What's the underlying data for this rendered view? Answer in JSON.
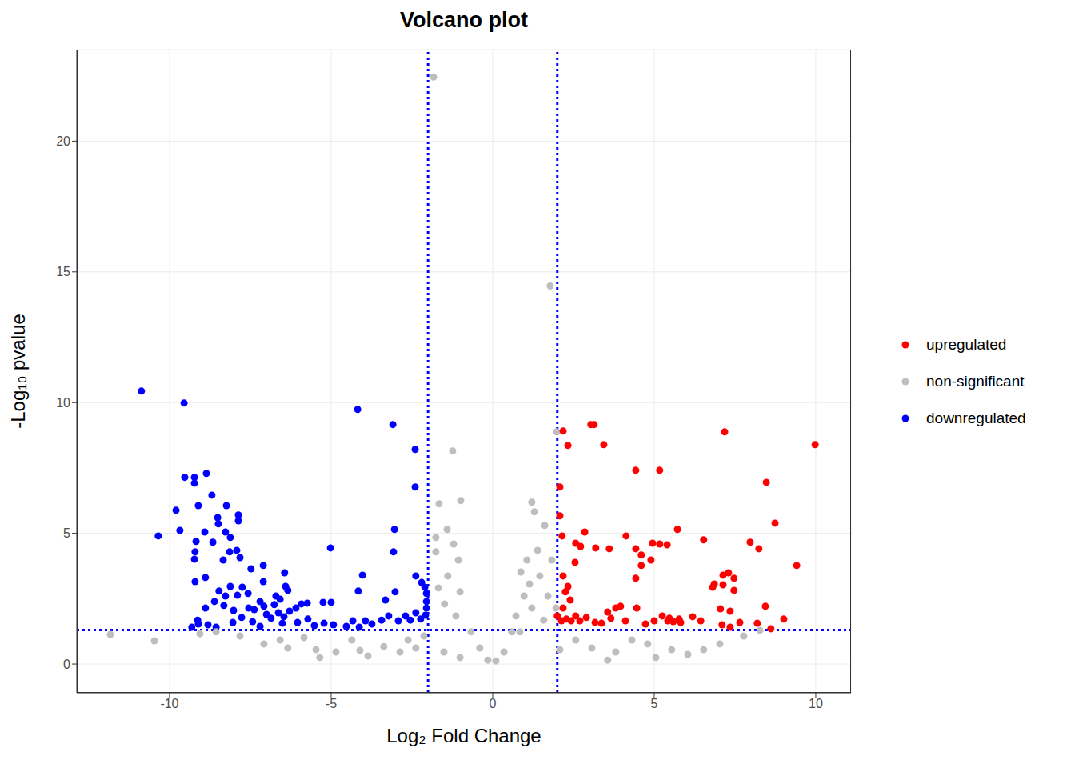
{
  "chart_data": {
    "type": "scatter",
    "title": "Volcano plot",
    "x_label": "Log₂ Fold Change",
    "y_label": "-Log₁₀ pvalue",
    "xlim": [
      -12.87,
      11.09
    ],
    "ylim": [
      -1.1,
      23.5
    ],
    "xticks": [
      -10,
      -5,
      0,
      5,
      10
    ],
    "yticks": [
      0,
      5,
      10,
      15,
      20
    ],
    "grid": true,
    "legend": "right",
    "marker": "circle",
    "series": [
      {
        "name": "upregulated",
        "color": "#FF0000",
        "x": [
          9.98,
          7.18,
          2.18,
          3.04,
          3.14,
          2.33,
          3.44,
          4.43,
          5.17,
          8.47,
          2.08,
          2.08,
          8.74,
          5.72,
          2.85,
          4.13,
          2.15,
          2.57,
          2.72,
          3.19,
          3.61,
          4.43,
          4.6,
          4.95,
          5.17,
          5.4,
          6.53,
          7.97,
          8.24,
          4.6,
          4.9,
          9.41,
          2.55,
          2.18,
          4.43,
          7.3,
          7.47,
          7.13,
          6.86,
          6.81,
          7.13,
          7.47,
          2.33,
          2.25,
          2.4,
          2.18,
          2.0,
          2.13,
          2.28,
          2.43,
          2.57,
          2.7,
          2.9,
          3.17,
          3.37,
          3.66,
          3.81,
          3.96,
          3.56,
          4.11,
          4.46,
          4.73,
          5.0,
          5.25,
          5.42,
          5.59,
          5.77,
          6.19,
          6.44,
          7.05,
          7.1,
          7.35,
          7.35,
          7.65,
          8.19,
          8.44,
          8.61,
          9.01,
          5.47,
          5.82
        ],
        "values": [
          8.39,
          8.88,
          8.91,
          9.16,
          9.16,
          8.36,
          8.39,
          7.41,
          7.41,
          6.95,
          6.77,
          5.67,
          5.39,
          5.15,
          5.05,
          4.9,
          4.9,
          4.62,
          4.5,
          4.44,
          4.41,
          4.41,
          4.17,
          4.62,
          4.59,
          4.56,
          4.75,
          4.66,
          4.41,
          3.77,
          3.98,
          3.77,
          3.89,
          3.37,
          3.28,
          3.49,
          3.28,
          3.4,
          3.06,
          2.94,
          3.03,
          2.82,
          2.97,
          2.76,
          2.45,
          2.14,
          1.84,
          1.65,
          1.72,
          1.65,
          1.84,
          1.65,
          1.78,
          1.59,
          1.56,
          1.75,
          2.14,
          2.21,
          1.99,
          1.65,
          2.14,
          1.53,
          1.65,
          1.84,
          1.65,
          1.62,
          1.72,
          1.81,
          1.65,
          2.11,
          1.5,
          2.02,
          1.41,
          1.59,
          1.56,
          2.21,
          1.35,
          1.72,
          1.75,
          1.59
        ]
      },
      {
        "name": "non-significant",
        "color": "#BEBEBE",
        "x": [
          -1.83,
          1.78,
          -1.24,
          1.98,
          -0.99,
          -1.66,
          1.21,
          1.29,
          -1.41,
          -1.76,
          -1.21,
          1.61,
          1.39,
          1.06,
          0.87,
          1.83,
          -1.76,
          -1.06,
          -1.39,
          -1.68,
          -1.01,
          -1.49,
          -1.14,
          -0.67,
          -0.4,
          -0.15,
          0.1,
          0.35,
          0.59,
          0.72,
          0.97,
          1.14,
          1.46,
          1.71,
          1.96,
          1.58,
          1.21,
          0.84,
          -11.83,
          -10.47,
          -7.82,
          -7.08,
          -6.34,
          -5.47,
          -4.85,
          -4.11,
          -3.37,
          -2.62,
          -2.13,
          -6.58,
          -5.35,
          -3.86,
          -2.87,
          -2.38,
          -8.56,
          -9.06,
          -4.36,
          -5.84,
          -1.51,
          -1.01,
          2.57,
          3.07,
          3.81,
          4.31,
          5.05,
          4.8,
          6.04,
          6.53,
          7.03,
          7.77,
          8.27,
          2.08,
          3.56,
          5.54
        ],
        "values": [
          22.45,
          14.46,
          8.15,
          8.88,
          6.25,
          6.13,
          6.19,
          5.82,
          5.15,
          4.84,
          4.59,
          5.3,
          4.35,
          3.98,
          3.52,
          3.98,
          4.29,
          3.98,
          3.37,
          2.91,
          2.76,
          2.3,
          1.84,
          1.23,
          0.61,
          0.15,
          0.12,
          0.46,
          1.23,
          1.84,
          2.6,
          3.06,
          3.37,
          2.6,
          2.14,
          1.68,
          2.14,
          1.23,
          1.13,
          0.89,
          1.07,
          0.77,
          0.61,
          0.55,
          0.46,
          0.52,
          0.67,
          0.92,
          1.07,
          0.92,
          0.25,
          0.31,
          0.46,
          0.61,
          1.23,
          1.16,
          0.92,
          1.01,
          0.46,
          0.25,
          0.92,
          0.61,
          0.46,
          0.92,
          0.25,
          0.77,
          0.37,
          0.55,
          0.77,
          1.07,
          1.29,
          0.55,
          0.15,
          0.55
        ]
      },
      {
        "name": "downregulated",
        "color": "#0000FF",
        "x": [
          -10.87,
          -9.55,
          -4.18,
          -3.09,
          -2.4,
          -2.4,
          -9.53,
          -9.23,
          -8.86,
          -9.23,
          -9.8,
          -10.35,
          -9.68,
          -9.11,
          -8.69,
          -8.51,
          -8.49,
          -8.24,
          -7.87,
          -7.87,
          -8.91,
          -8.66,
          -8.27,
          -8.12,
          -9.18,
          -9.21,
          -9.23,
          -9.21,
          -8.89,
          -8.14,
          -7.92,
          -7.82,
          -8.34,
          -3.04,
          -5.02,
          -4.03,
          -7.1,
          -7.48,
          -6.44,
          -3.07,
          -2.38,
          -4.16,
          -3.02,
          -3.32,
          -5.74,
          -5.25,
          -5.0,
          -6.34,
          -6.71,
          -6.58,
          -7.2,
          -7.57,
          -7.9,
          -8.27,
          -8.61,
          -8.89,
          -8.47,
          -8.12,
          -7.75,
          -9.11,
          -9.31,
          -9.13,
          -8.81,
          -8.56,
          -8.04,
          -7.77,
          -7.43,
          -7.2,
          -6.86,
          -6.63,
          -6.46,
          -6.04,
          -5.72,
          -5.52,
          -5.22,
          -4.93,
          -4.53,
          -4.33,
          -4.13,
          -3.94,
          -3.74,
          -3.44,
          -3.22,
          -2.92,
          -2.7,
          -2.55,
          -2.38,
          -2.23,
          -2.08,
          -2.05,
          -2.05,
          -2.05,
          -2.1,
          -2.2,
          -7.38,
          -7.08,
          -6.76,
          -6.09,
          -5.92,
          -6.29,
          -7.55,
          -8.32,
          -8.02,
          -7.1,
          -6.41,
          -7.0,
          -6.51
        ],
        "values": [
          10.44,
          9.98,
          9.74,
          9.16,
          8.21,
          6.77,
          7.14,
          7.14,
          7.29,
          6.92,
          5.88,
          4.9,
          5.11,
          6.06,
          6.46,
          5.6,
          5.36,
          6.06,
          5.7,
          5.48,
          5.05,
          4.66,
          5.05,
          4.84,
          4.69,
          4.29,
          4.01,
          3.15,
          3.31,
          4.29,
          4.35,
          4.07,
          3.98,
          5.15,
          4.44,
          3.4,
          3.77,
          3.64,
          3.49,
          4.29,
          3.37,
          2.79,
          2.76,
          2.45,
          2.33,
          2.36,
          2.36,
          2.82,
          2.6,
          2.48,
          2.39,
          2.7,
          2.63,
          2.6,
          2.39,
          2.14,
          2.79,
          2.97,
          2.94,
          1.53,
          1.41,
          1.68,
          1.5,
          1.41,
          1.59,
          1.78,
          1.62,
          1.44,
          1.75,
          1.96,
          1.81,
          1.59,
          1.72,
          1.47,
          1.56,
          1.5,
          1.44,
          1.65,
          1.41,
          1.65,
          1.53,
          1.68,
          1.84,
          1.65,
          1.84,
          1.68,
          1.96,
          1.72,
          1.87,
          2.14,
          2.39,
          2.7,
          2.94,
          3.12,
          2.08,
          2.21,
          2.27,
          2.14,
          2.3,
          2.02,
          2.14,
          2.24,
          2.05,
          3.15,
          2.97,
          1.9,
          1.56
        ]
      }
    ],
    "threshold_lines": {
      "x": [
        -2,
        2
      ],
      "y": [
        1.3
      ],
      "color": "#0000FF",
      "line_style": "dotted"
    }
  }
}
